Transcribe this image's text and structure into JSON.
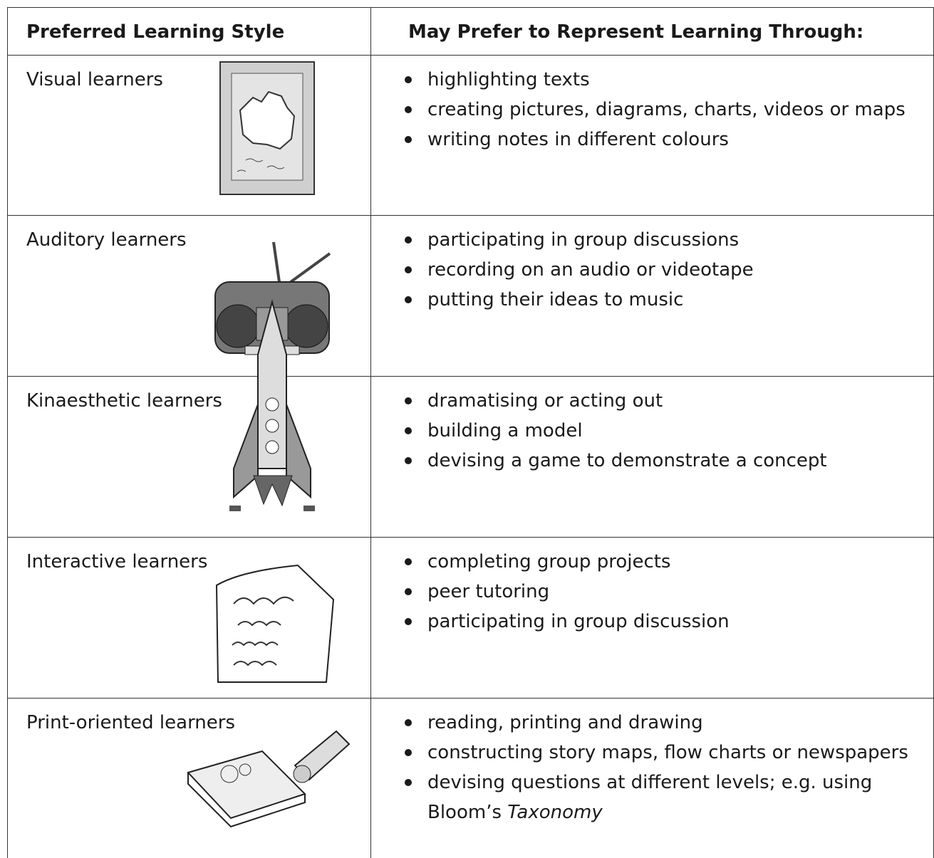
{
  "table": {
    "header": [
      "Preferred Learning Style",
      "May Prefer to Represent Learning Through:"
    ],
    "rows": [
      {
        "style": "Visual learners",
        "items": [
          "highlighting texts",
          "creating pictures, diagrams, charts, videos or maps",
          "writing notes in different colours"
        ]
      },
      {
        "style": "Auditory learners",
        "items": [
          "participating in group discussions",
          "recording on an audio or videotape",
          "putting their ideas to music"
        ]
      },
      {
        "style": "Kinaesthetic learners",
        "items": [
          "dramatising or acting out",
          "building a model",
          "devising a game to demonstrate a concept"
        ]
      },
      {
        "style": "Interactive learners",
        "items": [
          "completing group projects",
          "peer tutoring",
          "participating in group discussion"
        ]
      },
      {
        "style": "Print-oriented learners",
        "items": [
          "reading, printing and drawing",
          "constructing story maps, flow charts or newspapers",
          {
            "text": "devising questions at different levels; e.g. using Bloom’s",
            "emphasis": "Taxonomy"
          }
        ]
      }
    ]
  }
}
